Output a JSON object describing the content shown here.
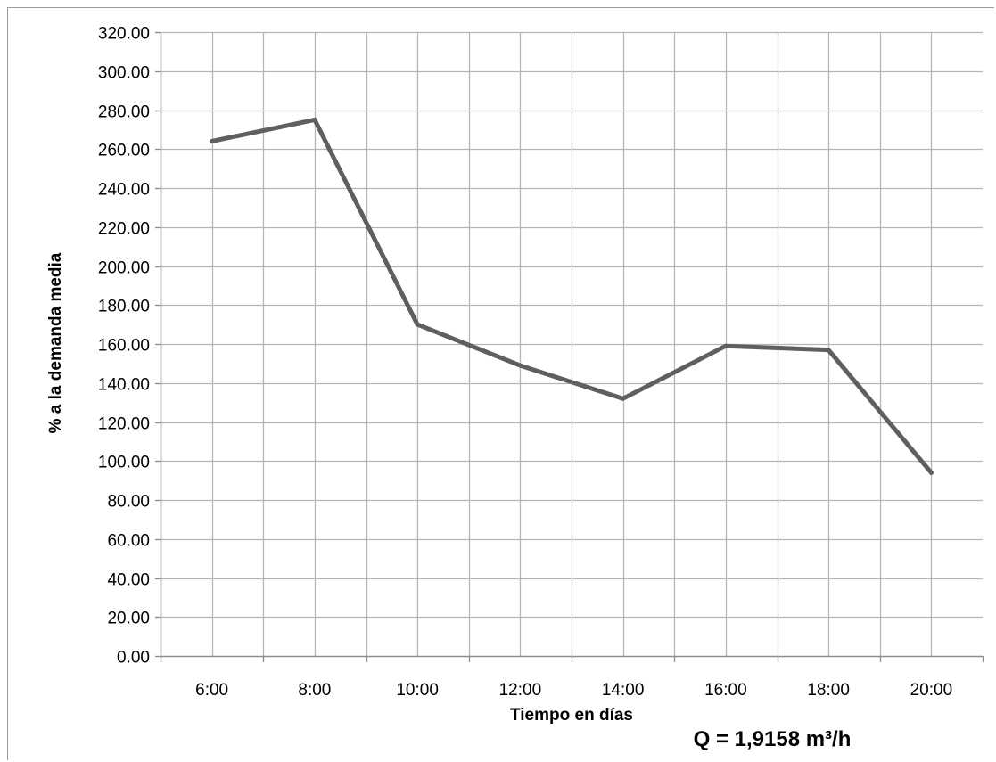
{
  "chart_data": {
    "type": "line",
    "title": "",
    "xlabel": "Tiempo en días",
    "ylabel": "% a la demanda media",
    "annotation": "Q = 1,9158 m³/h",
    "categories": [
      "6:00",
      "8:00",
      "10:00",
      "12:00",
      "14:00",
      "16:00",
      "18:00",
      "20:00"
    ],
    "y_tick_labels": [
      "0.00",
      "20.00",
      "40.00",
      "60.00",
      "80.00",
      "100.00",
      "120.00",
      "140.00",
      "160.00",
      "180.00",
      "200.00",
      "220.00",
      "240.00",
      "260.00",
      "280.00",
      "300.00",
      "320.00"
    ],
    "ylim": [
      0,
      320
    ],
    "y_step": 20,
    "grid": true,
    "legend": "none",
    "series": [
      {
        "values": [
          264,
          275,
          170,
          149,
          132,
          159,
          157,
          94
        ],
        "color": "#5f5f5f"
      }
    ],
    "grid_color": "#b5b5b5",
    "axis_color": "#8c8c8c"
  }
}
